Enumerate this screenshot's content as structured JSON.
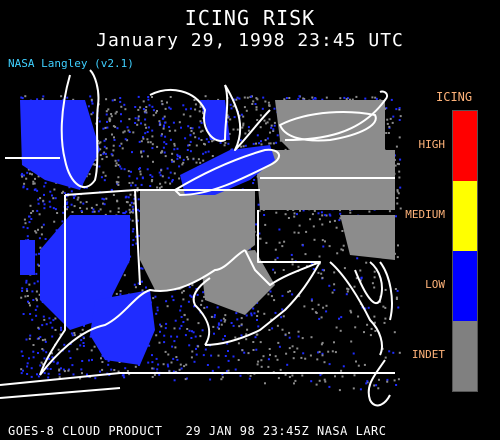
{
  "title": "ICING RISK",
  "subtitle": "January 29, 1998 23:45 UTC",
  "credit": "NASA Langley (v2.1)",
  "footer": "GOES-8 CLOUD PRODUCT   29 JAN 98 23:45Z NASA LARC",
  "legend": {
    "title": "ICING",
    "levels": [
      {
        "label": "HIGH",
        "color": "#ff0000"
      },
      {
        "label": "MEDIUM",
        "color": "#ffff00"
      },
      {
        "label": "LOW",
        "color": "#0000ff"
      },
      {
        "label": "INDET",
        "color": "#808080"
      }
    ]
  },
  "colors": {
    "low": "#1f2cff",
    "indet": "#8c8c8c",
    "border": "#ffffff",
    "credit": "#3fd0ff",
    "legend_text": "#ffb37a"
  }
}
